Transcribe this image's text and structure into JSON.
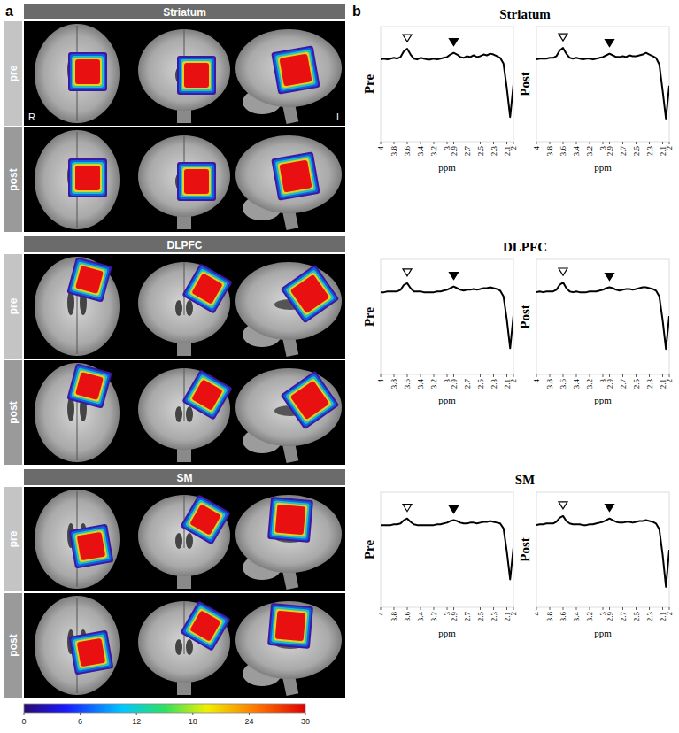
{
  "panel_a": {
    "letter": "a",
    "regions": [
      {
        "name": "Striatum",
        "rows": [
          "pre",
          "post"
        ]
      },
      {
        "name": "DLPFC",
        "rows": [
          "pre",
          "post"
        ]
      },
      {
        "name": "SM",
        "rows": [
          "pre",
          "post"
        ]
      }
    ],
    "side_labels": [
      "R",
      "L"
    ],
    "colorbar": {
      "range": [
        0,
        30
      ],
      "ticks": [
        0,
        6,
        12,
        18,
        24,
        30
      ]
    }
  },
  "panel_b": {
    "letter": "b",
    "titles": [
      "Striatum",
      "DLPFC",
      "SM"
    ]
  },
  "chart_data": [
    {
      "type": "line",
      "ylabel": "Pre",
      "xlabel": "ppm",
      "color": "#000000",
      "tick_labels": "x",
      "xlim": [
        4,
        2
      ],
      "ylim": [
        -1,
        0.4
      ],
      "xticks": [
        4,
        3.8,
        3.6,
        3.4,
        3.2,
        3,
        2.9,
        2.7,
        2.5,
        2.3,
        2.1,
        2
      ],
      "x": [
        4,
        3.95,
        3.9,
        3.85,
        3.8,
        3.75,
        3.7,
        3.65,
        3.6,
        3.55,
        3.5,
        3.45,
        3.4,
        3.35,
        3.3,
        3.25,
        3.2,
        3.15,
        3.1,
        3.05,
        3,
        2.95,
        2.9,
        2.85,
        2.8,
        2.75,
        2.7,
        2.65,
        2.6,
        2.55,
        2.5,
        2.45,
        2.4,
        2.35,
        2.3,
        2.25,
        2.2,
        2.15,
        2.1,
        2.05,
        2
      ],
      "values": [
        0,
        0.01,
        0,
        0.01,
        0.02,
        0.01,
        0.03,
        0.1,
        0.13,
        0.06,
        0.01,
        0,
        0.02,
        0.01,
        0,
        0,
        0.01,
        0,
        0.01,
        0.02,
        0.03,
        0.06,
        0.08,
        0.06,
        0.03,
        0.02,
        0.04,
        0.03,
        0.05,
        0.03,
        0.04,
        0.06,
        0.05,
        0.07,
        0.06,
        0.04,
        0.02,
        -0.05,
        -0.35,
        -0.7,
        -0.3
      ],
      "annotations": [
        {
          "x": 3.6,
          "marker": "open-triangle"
        },
        {
          "x": 2.9,
          "marker": "filled-triangle"
        }
      ]
    },
    {
      "type": "line",
      "ylabel": "Post",
      "xlabel": "ppm",
      "color": "#000000",
      "tick_labels": "x",
      "xlim": [
        4,
        2
      ],
      "ylim": [
        -1,
        0.4
      ],
      "xticks": [
        4,
        3.8,
        3.6,
        3.4,
        3.2,
        3,
        2.9,
        2.7,
        2.5,
        2.3,
        2.1,
        2
      ],
      "x": [
        4,
        3.95,
        3.9,
        3.85,
        3.8,
        3.75,
        3.7,
        3.65,
        3.6,
        3.55,
        3.5,
        3.45,
        3.4,
        3.35,
        3.3,
        3.25,
        3.2,
        3.15,
        3.1,
        3.05,
        3,
        2.95,
        2.9,
        2.85,
        2.8,
        2.75,
        2.7,
        2.65,
        2.6,
        2.55,
        2.5,
        2.45,
        2.4,
        2.35,
        2.3,
        2.25,
        2.2,
        2.15,
        2.1,
        2.05,
        2
      ],
      "values": [
        0,
        0.01,
        0.01,
        0.01,
        0.02,
        0.02,
        0.04,
        0.11,
        0.14,
        0.07,
        0.02,
        0.01,
        0.02,
        0.01,
        0,
        0.01,
        0.01,
        0,
        0.01,
        0.02,
        0.03,
        0.05,
        0.07,
        0.05,
        0.03,
        0.03,
        0.04,
        0.03,
        0.05,
        0.04,
        0.04,
        0.05,
        0.06,
        0.08,
        0.06,
        0.04,
        0.02,
        -0.06,
        -0.38,
        -0.72,
        -0.32
      ],
      "annotations": [
        {
          "x": 3.6,
          "marker": "open-triangle"
        },
        {
          "x": 2.9,
          "marker": "filled-triangle"
        }
      ]
    },
    {
      "type": "line",
      "ylabel": "Pre",
      "xlabel": "ppm",
      "color": "#000000",
      "tick_labels": "x",
      "xlim": [
        4,
        2
      ],
      "ylim": [
        -1,
        0.4
      ],
      "xticks": [
        4,
        3.8,
        3.6,
        3.4,
        3.2,
        3,
        2.9,
        2.7,
        2.5,
        2.3,
        2.1,
        2
      ],
      "x": [
        4,
        3.95,
        3.9,
        3.85,
        3.8,
        3.75,
        3.7,
        3.65,
        3.6,
        3.55,
        3.5,
        3.45,
        3.4,
        3.35,
        3.3,
        3.25,
        3.2,
        3.15,
        3.1,
        3.05,
        3,
        2.95,
        2.9,
        2.85,
        2.8,
        2.75,
        2.7,
        2.65,
        2.6,
        2.55,
        2.5,
        2.45,
        2.4,
        2.35,
        2.3,
        2.25,
        2.2,
        2.15,
        2.1,
        2.05,
        2
      ],
      "values": [
        0,
        0,
        0.01,
        0.01,
        0.01,
        0.01,
        0.03,
        0.09,
        0.11,
        0.05,
        0.01,
        0.01,
        0.01,
        0,
        0,
        0,
        0,
        0.01,
        0.01,
        0.02,
        0.03,
        0.05,
        0.07,
        0.05,
        0.03,
        0.02,
        0.03,
        0.03,
        0.04,
        0.03,
        0.04,
        0.05,
        0.05,
        0.06,
        0.05,
        0.04,
        0.02,
        -0.05,
        -0.33,
        -0.68,
        -0.28
      ],
      "annotations": [
        {
          "x": 3.6,
          "marker": "open-triangle"
        },
        {
          "x": 2.9,
          "marker": "filled-triangle"
        }
      ]
    },
    {
      "type": "line",
      "ylabel": "Post",
      "xlabel": "ppm",
      "color": "#000000",
      "tick_labels": "x",
      "xlim": [
        4,
        2
      ],
      "ylim": [
        -1,
        0.4
      ],
      "xticks": [
        4,
        3.8,
        3.6,
        3.4,
        3.2,
        3,
        2.9,
        2.7,
        2.5,
        2.3,
        2.1,
        2
      ],
      "x": [
        4,
        3.95,
        3.9,
        3.85,
        3.8,
        3.75,
        3.7,
        3.65,
        3.6,
        3.55,
        3.5,
        3.45,
        3.4,
        3.35,
        3.3,
        3.25,
        3.2,
        3.15,
        3.1,
        3.05,
        3,
        2.95,
        2.9,
        2.85,
        2.8,
        2.75,
        2.7,
        2.65,
        2.6,
        2.55,
        2.5,
        2.45,
        2.4,
        2.35,
        2.3,
        2.25,
        2.2,
        2.15,
        2.1,
        2.05,
        2
      ],
      "values": [
        0,
        0.01,
        0,
        0.01,
        0.01,
        0.01,
        0.03,
        0.09,
        0.12,
        0.05,
        0.01,
        0,
        0.01,
        0,
        0,
        0,
        0.01,
        0.01,
        0.01,
        0.02,
        0.03,
        0.05,
        0.06,
        0.05,
        0.03,
        0.02,
        0.03,
        0.04,
        0.04,
        0.03,
        0.04,
        0.05,
        0.06,
        0.06,
        0.05,
        0.04,
        0.02,
        -0.05,
        -0.34,
        -0.69,
        -0.29
      ],
      "annotations": [
        {
          "x": 3.6,
          "marker": "open-triangle"
        },
        {
          "x": 2.9,
          "marker": "filled-triangle"
        }
      ]
    },
    {
      "type": "line",
      "ylabel": "Pre",
      "xlabel": "ppm",
      "color": "#000000",
      "tick_labels": "x",
      "xlim": [
        4,
        2
      ],
      "ylim": [
        -1,
        0.4
      ],
      "xticks": [
        4,
        3.8,
        3.6,
        3.4,
        3.2,
        3,
        2.9,
        2.7,
        2.5,
        2.3,
        2.1,
        2
      ],
      "x": [
        4,
        3.95,
        3.9,
        3.85,
        3.8,
        3.75,
        3.7,
        3.65,
        3.6,
        3.55,
        3.5,
        3.45,
        3.4,
        3.35,
        3.3,
        3.25,
        3.2,
        3.15,
        3.1,
        3.05,
        3,
        2.95,
        2.9,
        2.85,
        2.8,
        2.75,
        2.7,
        2.65,
        2.6,
        2.55,
        2.5,
        2.45,
        2.4,
        2.35,
        2.3,
        2.25,
        2.2,
        2.15,
        2.1,
        2.05,
        2
      ],
      "values": [
        0,
        0,
        0,
        0,
        0.01,
        0.01,
        0.02,
        0.06,
        0.08,
        0.04,
        0.01,
        0,
        0,
        0,
        0,
        0,
        0,
        0.01,
        0.01,
        0.02,
        0.03,
        0.05,
        0.06,
        0.05,
        0.03,
        0.02,
        0.02,
        0.03,
        0.03,
        0.02,
        0.03,
        0.04,
        0.04,
        0.05,
        0.04,
        0.03,
        0.02,
        -0.04,
        -0.32,
        -0.66,
        -0.27
      ],
      "annotations": [
        {
          "x": 3.6,
          "marker": "open-triangle"
        },
        {
          "x": 2.9,
          "marker": "filled-triangle"
        }
      ]
    },
    {
      "type": "line",
      "ylabel": "Post",
      "xlabel": "ppm",
      "color": "#000000",
      "tick_labels": "x",
      "xlim": [
        4,
        2
      ],
      "ylim": [
        -1,
        0.4
      ],
      "xticks": [
        4,
        3.8,
        3.6,
        3.4,
        3.2,
        3,
        2.9,
        2.7,
        2.5,
        2.3,
        2.1,
        2
      ],
      "x": [
        4,
        3.95,
        3.9,
        3.85,
        3.8,
        3.75,
        3.7,
        3.65,
        3.6,
        3.55,
        3.5,
        3.45,
        3.4,
        3.35,
        3.3,
        3.25,
        3.2,
        3.15,
        3.1,
        3.05,
        3,
        2.95,
        2.9,
        2.85,
        2.8,
        2.75,
        2.7,
        2.65,
        2.6,
        2.55,
        2.5,
        2.45,
        2.4,
        2.35,
        2.3,
        2.25,
        2.2,
        2.15,
        2.1,
        2.05,
        2
      ],
      "values": [
        0,
        0.01,
        0.01,
        0.02,
        0.02,
        0.02,
        0.04,
        0.09,
        0.11,
        0.05,
        0.02,
        0.01,
        0.01,
        0.01,
        0,
        0,
        0.01,
        0.01,
        0.02,
        0.03,
        0.04,
        0.06,
        0.08,
        0.06,
        0.04,
        0.03,
        0.03,
        0.04,
        0.04,
        0.03,
        0.04,
        0.05,
        0.05,
        0.06,
        0.05,
        0.04,
        0.02,
        -0.05,
        -0.36,
        -0.75,
        -0.3
      ],
      "annotations": [
        {
          "x": 3.6,
          "marker": "open-triangle"
        },
        {
          "x": 2.9,
          "marker": "filled-triangle"
        }
      ]
    }
  ]
}
